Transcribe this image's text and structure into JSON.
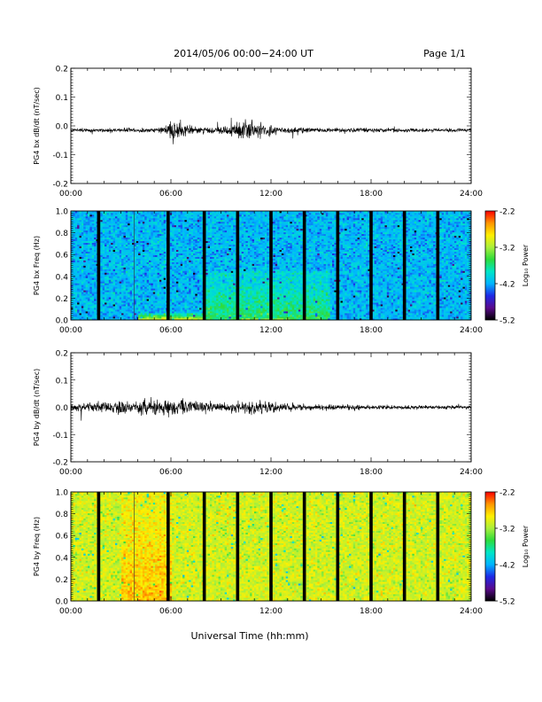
{
  "header": {
    "title": "2014/05/06  00:00−24:00 UT",
    "page": "Page 1/1"
  },
  "footer": {
    "xlabel": "Universal Time (hh:mm)"
  },
  "colors": {
    "line": "#000000",
    "gap": "#000000",
    "scale": [
      "#000000",
      "#5a0a8c",
      "#1e28e6",
      "#00b4ff",
      "#00e6c8",
      "#2ddc3c",
      "#aaf03c",
      "#fff000",
      "#ff9600",
      "#ff0000"
    ]
  },
  "chart_data": [
    {
      "type": "line",
      "ylabel": "PG4 bx dB/dt (nT/sec)",
      "xlim": [
        "00:00",
        "24:00"
      ],
      "ylim": [
        -0.2,
        0.2
      ],
      "x_ticks": [
        "00:00",
        "06:00",
        "12:00",
        "18:00",
        "24:00"
      ],
      "y_ticks": [
        "0.2",
        "0.1",
        "0.0",
        "-0.1",
        "-0.2"
      ],
      "series": [
        {
          "baseline": -0.015,
          "envelope": [
            {
              "t": "00:00",
              "amp": 0.005
            },
            {
              "t": "05:20",
              "amp": 0.008
            },
            {
              "t": "05:50",
              "amp": 0.03
            },
            {
              "t": "06:10",
              "amp": 0.045
            },
            {
              "t": "06:40",
              "amp": 0.02
            },
            {
              "t": "07:30",
              "amp": 0.012
            },
            {
              "t": "09:00",
              "amp": 0.01
            },
            {
              "t": "10:00",
              "amp": 0.03
            },
            {
              "t": "10:40",
              "amp": 0.04
            },
            {
              "t": "11:30",
              "amp": 0.025
            },
            {
              "t": "12:30",
              "amp": 0.012
            },
            {
              "t": "14:00",
              "amp": 0.008
            },
            {
              "t": "24:00",
              "amp": 0.005
            }
          ]
        }
      ]
    },
    {
      "type": "heatmap",
      "ylabel": "PG4 bx Freq (Hz)",
      "xlim": [
        "00:00",
        "24:00"
      ],
      "ylim": [
        0.0,
        1.0
      ],
      "x_ticks": [
        "00:00",
        "06:00",
        "12:00",
        "18:00",
        "24:00"
      ],
      "y_ticks": [
        "1.0",
        "0.8",
        "0.6",
        "0.4",
        "0.2",
        "0.0"
      ],
      "colorbar": {
        "label": "Log₁₀ Power",
        "range": [
          -5.2,
          -2.2
        ],
        "ticks": [
          "-2.2",
          "-3.2",
          "-4.2",
          "-5.2"
        ]
      },
      "base_level": -4.15,
      "enhancements": [
        {
          "t_start": "08:00",
          "t_end": "15:30",
          "f_max": 0.45,
          "level": -3.6
        },
        {
          "t_start": "04:00",
          "t_end": "08:00",
          "f_max": 0.06,
          "level": -2.9
        },
        {
          "t_start": "10:00",
          "t_end": "13:00",
          "f_max": 0.04,
          "level": -3.1
        }
      ],
      "gaps": [
        "01:40",
        "05:50",
        "08:00",
        "10:00",
        "12:00",
        "14:00",
        "16:00",
        "18:00",
        "20:00",
        "22:00"
      ]
    },
    {
      "type": "line",
      "ylabel": "PG4 by dB/dt (nT/sec)",
      "xlim": [
        "00:00",
        "24:00"
      ],
      "ylim": [
        -0.2,
        0.2
      ],
      "x_ticks": [
        "00:00",
        "06:00",
        "12:00",
        "18:00",
        "24:00"
      ],
      "y_ticks": [
        "0.2",
        "0.1",
        "0.0",
        "-0.1",
        "-0.2"
      ],
      "series": [
        {
          "baseline": 0.0,
          "envelope": [
            {
              "t": "00:00",
              "amp": 0.015
            },
            {
              "t": "03:00",
              "amp": 0.02
            },
            {
              "t": "05:50",
              "amp": 0.03
            },
            {
              "t": "06:20",
              "amp": 0.03
            },
            {
              "t": "09:00",
              "amp": 0.015
            },
            {
              "t": "11:00",
              "amp": 0.025
            },
            {
              "t": "13:00",
              "amp": 0.012
            },
            {
              "t": "18:00",
              "amp": 0.008
            },
            {
              "t": "24:00",
              "amp": 0.006
            }
          ]
        }
      ]
    },
    {
      "type": "heatmap",
      "ylabel": "PG4 by Freq (Hz)",
      "xlim": [
        "00:00",
        "24:00"
      ],
      "ylim": [
        0.0,
        1.0
      ],
      "x_ticks": [
        "00:00",
        "06:00",
        "12:00",
        "18:00",
        "24:00"
      ],
      "y_ticks": [
        "1.0",
        "0.8",
        "0.6",
        "0.4",
        "0.2",
        "0.0"
      ],
      "colorbar": {
        "label": "Log₁₀ Power",
        "range": [
          -5.2,
          -2.2
        ],
        "ticks": [
          "-2.2",
          "-3.2",
          "-4.2",
          "-5.2"
        ]
      },
      "base_level": -3.05,
      "enhancements": [
        {
          "t_start": "03:00",
          "t_end": "06:00",
          "f_max": 1.0,
          "level": -2.7
        }
      ],
      "gaps": [
        "01:40",
        "05:50",
        "08:00",
        "10:00",
        "12:00",
        "14:00",
        "16:00",
        "18:00",
        "20:00",
        "22:00"
      ]
    }
  ]
}
